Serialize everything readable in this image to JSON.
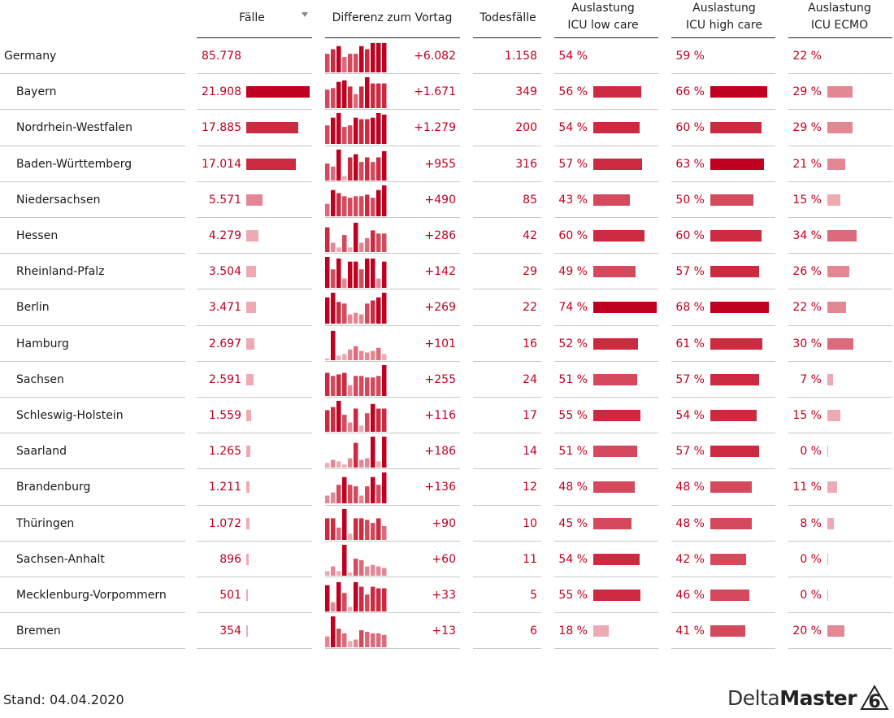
{
  "headers": {
    "faelle": "Fälle",
    "differenz": "Differenz zum Vortag",
    "todesfaelle": "Todesfälle",
    "icu_low_1": "Auslastung",
    "icu_low_2": "ICU low care",
    "icu_high_1": "Auslastung",
    "icu_high_2": "ICU high care",
    "icu_ecmo_1": "Auslastung",
    "icu_ecmo_2": "ICU ECMO"
  },
  "icons": {
    "sort": "sort-descending-icon",
    "logo": "deltamaster-6-logo"
  },
  "colors": {
    "accent": "#c00020",
    "text": "#1a1a1a",
    "rule": "#c8c8c8"
  },
  "rows": [
    {
      "name": "Germany",
      "faelle": "85.778",
      "faelle_v": 85778,
      "diff": "+6.082",
      "tod": "1.158",
      "low": "54 %",
      "low_v": 54,
      "high": "59 %",
      "high_v": 59,
      "ecmo": "22 %",
      "ecmo_v": 22,
      "spark": [
        0.6,
        0.75,
        0.85,
        0.5,
        0.6,
        0.6,
        0.85,
        0.75,
        0.95,
        0.95,
        0.95
      ],
      "total": true
    },
    {
      "name": "Bayern",
      "faelle": "21.908",
      "faelle_v": 21908,
      "diff": "+1.671",
      "tod": "349",
      "low": "56 %",
      "low_v": 56,
      "high": "66 %",
      "high_v": 66,
      "ecmo": "29 %",
      "ecmo_v": 29,
      "spark": [
        0.6,
        0.65,
        0.85,
        0.9,
        0.7,
        0.45,
        0.7,
        1.0,
        0.8,
        0.8,
        0.8
      ]
    },
    {
      "name": "Nordrhein-Westfalen",
      "faelle": "17.885",
      "faelle_v": 17885,
      "diff": "+1.279",
      "tod": "200",
      "low": "54 %",
      "low_v": 54,
      "high": "60 %",
      "high_v": 60,
      "ecmo": "29 %",
      "ecmo_v": 29,
      "spark": [
        0.6,
        0.85,
        1.0,
        0.55,
        0.6,
        0.85,
        0.8,
        0.8,
        0.85,
        1.0,
        0.95
      ]
    },
    {
      "name": "Baden-Württemberg",
      "faelle": "17.014",
      "faelle_v": 17014,
      "diff": "+955",
      "tod": "316",
      "low": "57 %",
      "low_v": 57,
      "high": "63 %",
      "high_v": 63,
      "ecmo": "21 %",
      "ecmo_v": 21,
      "spark": [
        0.55,
        0.45,
        1.0,
        0.15,
        0.75,
        0.85,
        0.6,
        0.75,
        0.6,
        0.75,
        0.95
      ]
    },
    {
      "name": "Niedersachsen",
      "faelle": "5.571",
      "faelle_v": 5571,
      "diff": "+490",
      "tod": "85",
      "low": "43 %",
      "low_v": 43,
      "high": "50 %",
      "high_v": 50,
      "ecmo": "15 %",
      "ecmo_v": 15,
      "spark": [
        0.4,
        0.85,
        0.75,
        0.65,
        0.6,
        0.65,
        0.65,
        0.7,
        0.6,
        0.85,
        1.0
      ]
    },
    {
      "name": "Hessen",
      "faelle": "4.279",
      "faelle_v": 4279,
      "diff": "+286",
      "tod": "42",
      "low": "60 %",
      "low_v": 60,
      "high": "60 %",
      "high_v": 60,
      "ecmo": "34 %",
      "ecmo_v": 34,
      "spark": [
        0.8,
        0.3,
        0.15,
        0.55,
        0.15,
        0.95,
        0.3,
        0.45,
        0.7,
        0.6,
        0.6
      ]
    },
    {
      "name": "Rheinland-Pfalz",
      "faelle": "3.504",
      "faelle_v": 3504,
      "diff": "+142",
      "tod": "29",
      "low": "49 %",
      "low_v": 49,
      "high": "57 %",
      "high_v": 57,
      "ecmo": "26 %",
      "ecmo_v": 26,
      "spark": [
        1.0,
        0.6,
        0.95,
        0.3,
        0.85,
        0.85,
        0.6,
        0.95,
        0.95,
        0.3,
        0.85
      ]
    },
    {
      "name": "Berlin",
      "faelle": "3.471",
      "faelle_v": 3471,
      "diff": "+269",
      "tod": "22",
      "low": "74 %",
      "low_v": 74,
      "high": "68 %",
      "high_v": 68,
      "ecmo": "22 %",
      "ecmo_v": 22,
      "spark": [
        0.85,
        1.0,
        0.7,
        0.65,
        0.3,
        0.35,
        0.3,
        0.65,
        0.75,
        0.85,
        1.0
      ]
    },
    {
      "name": "Hamburg",
      "faelle": "2.697",
      "faelle_v": 2697,
      "diff": "+101",
      "tod": "16",
      "low": "52 %",
      "low_v": 52,
      "high": "61 %",
      "high_v": 61,
      "ecmo": "30 %",
      "ecmo_v": 30,
      "spark": [
        0.0,
        0.95,
        0.15,
        0.2,
        0.35,
        0.45,
        0.3,
        0.25,
        0.3,
        0.4,
        0.2
      ]
    },
    {
      "name": "Sachsen",
      "faelle": "2.591",
      "faelle_v": 2591,
      "diff": "+255",
      "tod": "24",
      "low": "51 %",
      "low_v": 51,
      "high": "57 %",
      "high_v": 57,
      "ecmo": "7 %",
      "ecmo_v": 7,
      "spark": [
        0.75,
        0.65,
        0.7,
        0.75,
        0.35,
        0.65,
        0.65,
        0.6,
        0.6,
        0.65,
        1.0
      ]
    },
    {
      "name": "Schleswig-Holstein",
      "faelle": "1.559",
      "faelle_v": 1559,
      "diff": "+116",
      "tod": "17",
      "low": "55 %",
      "low_v": 55,
      "high": "54 %",
      "high_v": 54,
      "ecmo": "15 %",
      "ecmo_v": 15,
      "spark": [
        0.7,
        0.8,
        1.0,
        0.55,
        0.3,
        0.75,
        0.2,
        0.6,
        0.9,
        0.75,
        0.75
      ]
    },
    {
      "name": "Saarland",
      "faelle": "1.265",
      "faelle_v": 1265,
      "diff": "+186",
      "tod": "14",
      "low": "51 %",
      "low_v": 51,
      "high": "57 %",
      "high_v": 57,
      "ecmo": "0 %",
      "ecmo_v": 0,
      "spark": [
        0.15,
        0.25,
        0.2,
        0.1,
        0.3,
        0.8,
        0.25,
        0.3,
        1.0,
        0.2,
        1.0
      ]
    },
    {
      "name": "Brandenburg",
      "faelle": "1.211",
      "faelle_v": 1211,
      "diff": "+136",
      "tod": "12",
      "low": "48 %",
      "low_v": 48,
      "high": "48 %",
      "high_v": 48,
      "ecmo": "11 %",
      "ecmo_v": 11,
      "spark": [
        0.25,
        0.35,
        0.6,
        0.85,
        0.6,
        0.55,
        0.25,
        0.55,
        0.85,
        0.6,
        1.0
      ]
    },
    {
      "name": "Thüringen",
      "faelle": "1.072",
      "faelle_v": 1072,
      "diff": "+90",
      "tod": "10",
      "low": "45 %",
      "low_v": 45,
      "high": "48 %",
      "high_v": 48,
      "ecmo": "8 %",
      "ecmo_v": 8,
      "spark": [
        0.7,
        0.7,
        0.4,
        1.0,
        0.2,
        0.7,
        0.7,
        0.65,
        0.55,
        0.7,
        0.45
      ]
    },
    {
      "name": "Sachsen-Anhalt",
      "faelle": "896",
      "faelle_v": 896,
      "diff": "+60",
      "tod": "11",
      "low": "54 %",
      "low_v": 54,
      "high": "42 %",
      "high_v": 42,
      "ecmo": "0 %",
      "ecmo_v": 0,
      "spark": [
        0.15,
        0.3,
        0.15,
        1.0,
        0.1,
        0.55,
        0.5,
        0.3,
        0.35,
        0.3,
        0.25
      ]
    },
    {
      "name": "Mecklenburg-Vorpommern",
      "faelle": "501",
      "faelle_v": 501,
      "diff": "+33",
      "tod": "5",
      "low": "55 %",
      "low_v": 55,
      "high": "46 %",
      "high_v": 46,
      "ecmo": "0 %",
      "ecmo_v": 0,
      "spark": [
        0.85,
        0.3,
        0.95,
        0.6,
        0.15,
        0.95,
        0.8,
        0.55,
        0.8,
        0.75,
        0.75
      ]
    },
    {
      "name": "Bremen",
      "faelle": "354",
      "faelle_v": 354,
      "diff": "+13",
      "tod": "6",
      "low": "18 %",
      "low_v": 18,
      "high": "41 %",
      "high_v": 41,
      "ecmo": "20 %",
      "ecmo_v": 20,
      "spark": [
        0.35,
        1.0,
        0.6,
        0.45,
        0.2,
        0.25,
        0.55,
        0.5,
        0.45,
        0.45,
        0.4
      ]
    }
  ],
  "footer": {
    "stand": "Stand: 04.04.2020",
    "logo_part1": "Delta",
    "logo_part2": "Master"
  }
}
